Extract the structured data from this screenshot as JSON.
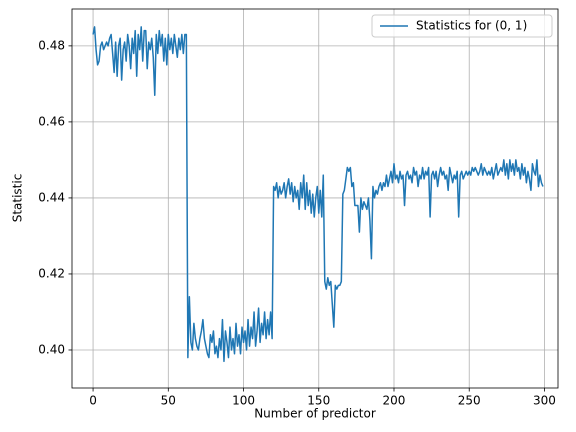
{
  "chart_data": {
    "type": "line",
    "xlabel": "Number of predictor",
    "ylabel": "Statistic",
    "x": [
      0,
      1,
      2,
      3,
      4,
      5,
      6,
      7,
      8,
      9,
      10,
      11,
      12,
      13,
      14,
      15,
      16,
      17,
      18,
      19,
      20,
      21,
      22,
      23,
      24,
      25,
      26,
      27,
      28,
      29,
      30,
      31,
      32,
      33,
      34,
      35,
      36,
      37,
      38,
      39,
      40,
      41,
      42,
      43,
      44,
      45,
      46,
      47,
      48,
      49,
      50,
      51,
      52,
      53,
      54,
      55,
      56,
      57,
      58,
      59,
      60,
      61,
      62,
      63,
      64,
      65,
      66,
      67,
      68,
      69,
      70,
      71,
      72,
      73,
      74,
      75,
      76,
      77,
      78,
      79,
      80,
      81,
      82,
      83,
      84,
      85,
      86,
      87,
      88,
      89,
      90,
      91,
      92,
      93,
      94,
      95,
      96,
      97,
      98,
      99,
      100,
      101,
      102,
      103,
      104,
      105,
      106,
      107,
      108,
      109,
      110,
      111,
      112,
      113,
      114,
      115,
      116,
      117,
      118,
      119,
      120,
      121,
      122,
      123,
      124,
      125,
      126,
      127,
      128,
      129,
      130,
      131,
      132,
      133,
      134,
      135,
      136,
      137,
      138,
      139,
      140,
      141,
      142,
      143,
      144,
      145,
      146,
      147,
      148,
      149,
      150,
      151,
      152,
      153,
      154,
      155,
      156,
      157,
      158,
      159,
      160,
      161,
      162,
      163,
      164,
      165,
      166,
      167,
      168,
      169,
      170,
      171,
      172,
      173,
      174,
      175,
      176,
      177,
      178,
      179,
      180,
      181,
      182,
      183,
      184,
      185,
      186,
      187,
      188,
      189,
      190,
      191,
      192,
      193,
      194,
      195,
      196,
      197,
      198,
      199,
      200,
      201,
      202,
      203,
      204,
      205,
      206,
      207,
      208,
      209,
      210,
      211,
      212,
      213,
      214,
      215,
      216,
      217,
      218,
      219,
      220,
      221,
      222,
      223,
      224,
      225,
      226,
      227,
      228,
      229,
      230,
      231,
      232,
      233,
      234,
      235,
      236,
      237,
      238,
      239,
      240,
      241,
      242,
      243,
      244,
      245,
      246,
      247,
      248,
      249,
      250,
      251,
      252,
      253,
      254,
      255,
      256,
      257,
      258,
      259,
      260,
      261,
      262,
      263,
      264,
      265,
      266,
      267,
      268,
      269,
      270,
      271,
      272,
      273,
      274,
      275,
      276,
      277,
      278,
      279,
      280,
      281,
      282,
      283,
      284,
      285,
      286,
      287,
      288,
      289,
      290,
      291,
      292,
      293,
      294,
      295,
      296,
      297,
      298,
      299
    ],
    "series": [
      {
        "name": "Statistics for (0, 1)",
        "color": "#1f77b4",
        "values": [
          0.483,
          0.485,
          0.479,
          0.475,
          0.476,
          0.48,
          0.481,
          0.479,
          0.48,
          0.481,
          0.48,
          0.482,
          0.483,
          0.478,
          0.473,
          0.481,
          0.472,
          0.48,
          0.482,
          0.471,
          0.479,
          0.481,
          0.476,
          0.483,
          0.48,
          0.474,
          0.482,
          0.478,
          0.484,
          0.472,
          0.483,
          0.479,
          0.485,
          0.476,
          0.484,
          0.484,
          0.474,
          0.481,
          0.479,
          0.482,
          0.477,
          0.467,
          0.483,
          0.478,
          0.484,
          0.48,
          0.483,
          0.476,
          0.482,
          0.475,
          0.483,
          0.479,
          0.482,
          0.478,
          0.483,
          0.48,
          0.477,
          0.482,
          0.479,
          0.483,
          0.478,
          0.483,
          0.483,
          0.398,
          0.414,
          0.402,
          0.4,
          0.407,
          0.403,
          0.401,
          0.4,
          0.403,
          0.405,
          0.408,
          0.403,
          0.401,
          0.399,
          0.398,
          0.404,
          0.402,
          0.405,
          0.399,
          0.401,
          0.398,
          0.403,
          0.4,
          0.408,
          0.397,
          0.405,
          0.402,
          0.398,
          0.406,
          0.4,
          0.403,
          0.399,
          0.407,
          0.401,
          0.404,
          0.399,
          0.406,
          0.402,
          0.405,
          0.4,
          0.408,
          0.401,
          0.406,
          0.403,
          0.41,
          0.401,
          0.405,
          0.411,
          0.402,
          0.407,
          0.404,
          0.41,
          0.403,
          0.408,
          0.404,
          0.41,
          0.403,
          0.443,
          0.442,
          0.444,
          0.44,
          0.443,
          0.441,
          0.442,
          0.444,
          0.44,
          0.443,
          0.445,
          0.441,
          0.444,
          0.439,
          0.443,
          0.44,
          0.442,
          0.437,
          0.444,
          0.44,
          0.446,
          0.437,
          0.444,
          0.438,
          0.442,
          0.436,
          0.441,
          0.435,
          0.44,
          0.443,
          0.436,
          0.442,
          0.435,
          0.446,
          0.418,
          0.416,
          0.419,
          0.417,
          0.418,
          0.412,
          0.406,
          0.417,
          0.416,
          0.417,
          0.417,
          0.418,
          0.441,
          0.442,
          0.445,
          0.448,
          0.447,
          0.448,
          0.443,
          0.444,
          0.438,
          0.438,
          0.438,
          0.431,
          0.44,
          0.437,
          0.439,
          0.438,
          0.437,
          0.44,
          0.434,
          0.424,
          0.443,
          0.44,
          0.442,
          0.441,
          0.443,
          0.444,
          0.442,
          0.444,
          0.443,
          0.446,
          0.443,
          0.445,
          0.447,
          0.444,
          0.449,
          0.445,
          0.446,
          0.444,
          0.447,
          0.445,
          0.446,
          0.438,
          0.446,
          0.447,
          0.445,
          0.446,
          0.444,
          0.448,
          0.446,
          0.447,
          0.443,
          0.446,
          0.445,
          0.448,
          0.445,
          0.447,
          0.446,
          0.448,
          0.435,
          0.446,
          0.447,
          0.445,
          0.447,
          0.443,
          0.446,
          0.448,
          0.446,
          0.447,
          0.445,
          0.446,
          0.442,
          0.448,
          0.446,
          0.444,
          0.446,
          0.445,
          0.447,
          0.435,
          0.446,
          0.447,
          0.445,
          0.446,
          0.447,
          0.446,
          0.447,
          0.446,
          0.448,
          0.447,
          0.448,
          0.447,
          0.446,
          0.447,
          0.449,
          0.446,
          0.448,
          0.447,
          0.446,
          0.447,
          0.446,
          0.448,
          0.445,
          0.447,
          0.449,
          0.446,
          0.447,
          0.448,
          0.447,
          0.45,
          0.446,
          0.449,
          0.445,
          0.45,
          0.447,
          0.449,
          0.446,
          0.45,
          0.447,
          0.448,
          0.445,
          0.449,
          0.446,
          0.448,
          0.444,
          0.447,
          0.445,
          0.442,
          0.449,
          0.447,
          0.446,
          0.45,
          0.443,
          0.446,
          0.444,
          0.443
        ]
      }
    ],
    "xlim": [
      -14,
      309
    ],
    "ylim": [
      0.39,
      0.4897
    ],
    "xticks": [
      0,
      50,
      100,
      150,
      200,
      250,
      300
    ],
    "yticks": [
      {
        "value": 0.4,
        "label": "0.40"
      },
      {
        "value": 0.42,
        "label": "0.42"
      },
      {
        "value": 0.44,
        "label": "0.44"
      },
      {
        "value": 0.46,
        "label": "0.46"
      },
      {
        "value": 0.48,
        "label": "0.48"
      }
    ],
    "grid": true,
    "legend": "upper right"
  }
}
